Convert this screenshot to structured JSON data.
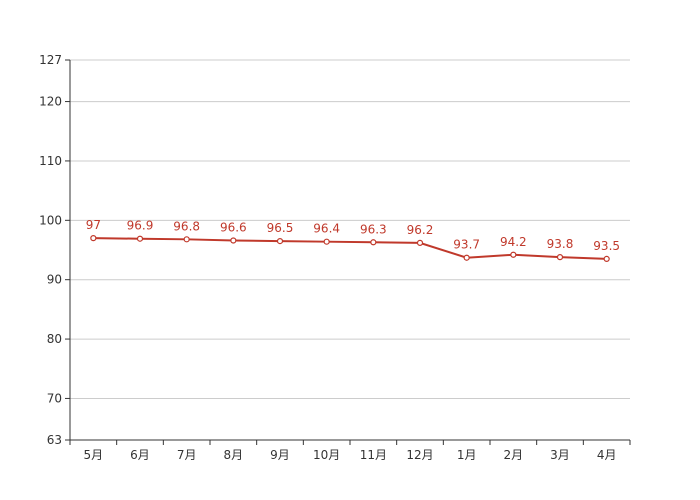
{
  "chart_data": {
    "type": "line",
    "title": "",
    "xlabel": "",
    "ylabel": "",
    "categories": [
      "5月",
      "6月",
      "7月",
      "8月",
      "9月",
      "10月",
      "11月",
      "12月",
      "1月",
      "2月",
      "3月",
      "4月"
    ],
    "series": [
      {
        "values": [
          97,
          96.9,
          96.8,
          96.6,
          96.5,
          96.4,
          96.3,
          96.2,
          93.7,
          94.2,
          93.8,
          93.5
        ]
      }
    ],
    "data_labels": [
      "97",
      "96.9",
      "96.8",
      "96.6",
      "96.5",
      "96.4",
      "96.3",
      "96.2",
      "93.7",
      "94.2",
      "93.8",
      "93.5"
    ],
    "ylim": [
      63,
      127
    ],
    "yticks": [
      63,
      70,
      80,
      90,
      100,
      110,
      120,
      127
    ],
    "ytick_labels": [
      "63",
      "70",
      "80",
      "90",
      "100",
      "110",
      "120",
      "127"
    ],
    "grid": true,
    "legend": "none",
    "colors": {
      "series": "#c0392b",
      "grid": "#cccccc",
      "axis": "#333333"
    }
  }
}
